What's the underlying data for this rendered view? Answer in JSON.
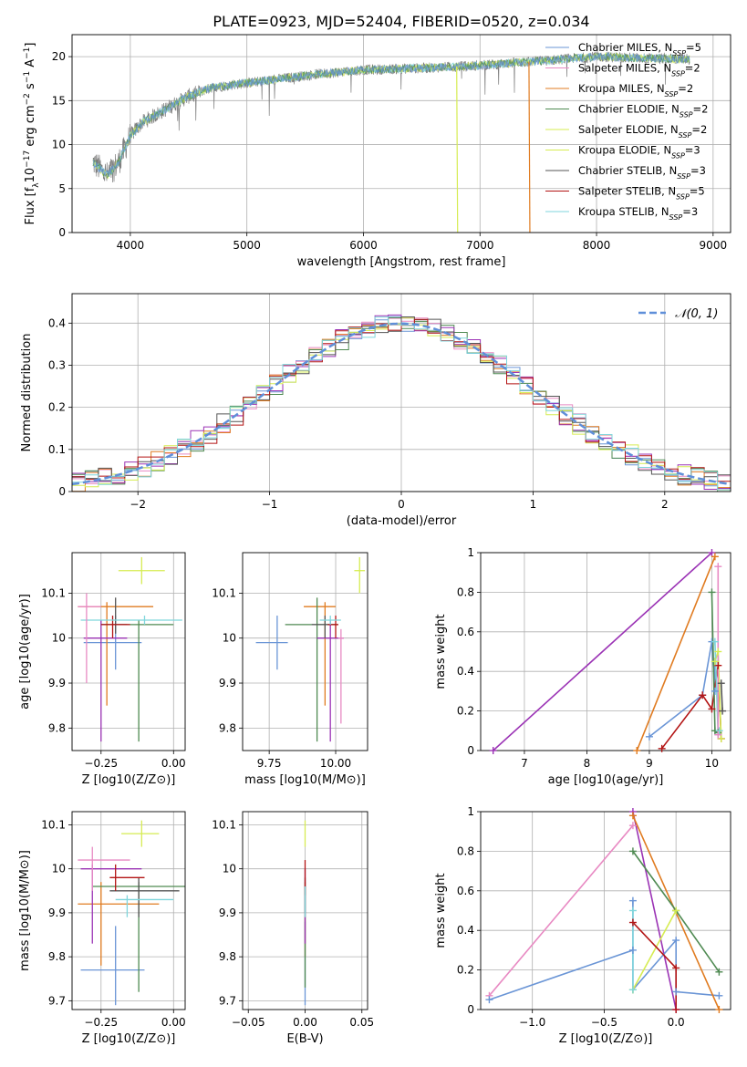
{
  "figure": {
    "title": "PLATE=0923, MJD=52404, FIBERID=0520, z=0.034"
  },
  "colors": {
    "series": [
      "#6a95d6",
      "#e88ac3",
      "#e07b20",
      "#4f8a52",
      "#9b33b5",
      "#d6ec52",
      "#555555",
      "#b31414",
      "#7fd6dc"
    ],
    "observed": "#7f7f7f",
    "grid": "#b0b0b0",
    "gaussian": "#5f8fd9"
  },
  "chart_data": [
    {
      "id": "spectrum",
      "type": "line",
      "xlabel": "wavelength [Angstrom, rest frame]",
      "ylabel_parts": [
        "Flux [f",
        "λ",
        "10",
        "−17",
        " erg cm",
        "−2",
        " s",
        "−1",
        " A",
        "−1",
        "]"
      ],
      "xlim": [
        3500,
        9150
      ],
      "ylim": [
        0,
        22.5
      ],
      "xticks": [
        4000,
        5000,
        6000,
        7000,
        8000,
        9000
      ],
      "yticks": [
        0,
        5,
        10,
        15,
        20
      ],
      "legend": [
        {
          "name": "Chabrier MILES, N",
          "sub": "SSP",
          "suffix": "=5"
        },
        {
          "name": "Salpeter MILES, N",
          "sub": "SSP",
          "suffix": "=2"
        },
        {
          "name": "Kroupa MILES, N",
          "sub": "SSP",
          "suffix": "=2"
        },
        {
          "name": "Chabrier ELODIE, N",
          "sub": "SSP",
          "suffix": "=2"
        },
        {
          "name": "Salpeter ELODIE, N",
          "sub": "SSP",
          "suffix": "=2"
        },
        {
          "name": "Kroupa ELODIE, N",
          "sub": "SSP",
          "suffix": "=3"
        },
        {
          "name": "Chabrier STELIB, N",
          "sub": "SSP",
          "suffix": "=3"
        },
        {
          "name": "Salpeter STELIB, N",
          "sub": "SSP",
          "suffix": "=5"
        },
        {
          "name": "Kroupa STELIB, N",
          "sub": "SSP",
          "suffix": "=3"
        }
      ],
      "legend_colors": [
        0,
        1,
        2,
        3,
        5,
        5,
        6,
        7,
        8
      ],
      "continuum_x": [
        3680,
        3800,
        3900,
        4000,
        4100,
        4300,
        4500,
        4700,
        5000,
        5300,
        5600,
        6000,
        6500,
        7000,
        7500,
        8000,
        8500,
        8800
      ],
      "continuum_y": [
        8,
        6.5,
        8,
        11,
        12.5,
        14,
        15.5,
        16.5,
        17,
        17.5,
        18,
        18.5,
        18.7,
        19,
        19.5,
        20,
        19.8,
        19.7
      ],
      "drop_lines": [
        {
          "x": 6800,
          "color": 5
        },
        {
          "x": 7420,
          "color": 2
        }
      ]
    },
    {
      "id": "residuals",
      "type": "histogram",
      "xlabel": "(data-model)/error",
      "ylabel": "Normed distribution",
      "xlim": [
        -2.5,
        2.5
      ],
      "ylim": [
        0,
        0.47
      ],
      "xticks": [
        -2,
        -1,
        0,
        1,
        2
      ],
      "yticks": [
        0,
        0.1,
        0.2,
        0.3,
        0.4
      ],
      "gaussian_label": "𝒩(0, 1)",
      "bin_width": 0.1
    },
    {
      "id": "age-vs-Z",
      "type": "scatter",
      "xlabel": "Z [log10(Z/Z⊙)]",
      "ylabel": "age  [log10(age/yr)]",
      "xlim": [
        -0.35,
        0.04
      ],
      "ylim": [
        9.75,
        10.19
      ],
      "xticks": [
        -0.25,
        0.0
      ],
      "xticklabels": [
        "−0.25",
        "0.00"
      ],
      "yticks": [
        9.8,
        9.9,
        10.0,
        10.1
      ],
      "points": [
        {
          "x": -0.2,
          "y": 9.99,
          "xerr": [
            0.11,
            0.09
          ],
          "yerr": [
            0.06,
            0.06
          ],
          "c": 0
        },
        {
          "x": -0.23,
          "y": 10.07,
          "xerr": [
            0.1,
            0.16
          ],
          "yerr": [
            0.22,
            0.01
          ],
          "c": 2
        },
        {
          "x": -0.12,
          "y": 10.03,
          "xerr": [
            0.13,
            0.12
          ],
          "yerr": [
            0.26,
            0.01
          ],
          "c": 3
        },
        {
          "x": -0.25,
          "y": 10.0,
          "xerr": [
            0.06,
            0.09
          ],
          "yerr": [
            0.23,
            0.04
          ],
          "c": 4
        },
        {
          "x": -0.11,
          "y": 10.15,
          "xerr": [
            0.08,
            0.08
          ],
          "yerr": [
            0.03,
            0.03
          ],
          "c": 5
        },
        {
          "x": -0.2,
          "y": 10.03,
          "xerr": [
            0.05,
            0.04
          ],
          "yerr": [
            0.02,
            0.06
          ],
          "c": 6
        },
        {
          "x": -0.21,
          "y": 10.03,
          "xerr": [
            0.04,
            0.06
          ],
          "yerr": [
            0.03,
            0.02
          ],
          "c": 7
        },
        {
          "x": -0.1,
          "y": 10.04,
          "xerr": [
            0.22,
            0.13
          ],
          "yerr": [
            0.01,
            0.01
          ],
          "c": 8
        },
        {
          "x": -0.3,
          "y": 10.07,
          "xerr": [
            0.03,
            0.05
          ],
          "yerr": [
            0.17,
            0.03
          ],
          "c": 1
        }
      ]
    },
    {
      "id": "age-vs-mass",
      "type": "scatter",
      "xlabel": "mass [log10(M/M⊙)]",
      "ylabel": "",
      "xlim": [
        9.65,
        10.12
      ],
      "ylim": [
        9.75,
        10.19
      ],
      "xticks": [
        9.75,
        10.0
      ],
      "xticklabels": [
        "9.75",
        "10.00"
      ],
      "yticks": [
        9.8,
        9.9,
        10.0,
        10.1
      ],
      "points": [
        {
          "x": 9.78,
          "y": 9.99,
          "xerr": [
            0.08,
            0.04
          ],
          "yerr": [
            0.06,
            0.06
          ],
          "c": 0
        },
        {
          "x": 9.96,
          "y": 10.07,
          "xerr": [
            0.08,
            0.04
          ],
          "yerr": [
            0.22,
            0.01
          ],
          "c": 2
        },
        {
          "x": 9.93,
          "y": 10.03,
          "xerr": [
            0.12,
            0.08
          ],
          "yerr": [
            0.26,
            0.06
          ],
          "c": 3
        },
        {
          "x": 9.98,
          "y": 10.0,
          "xerr": [
            0.05,
            0.05
          ],
          "yerr": [
            0.23,
            0.04
          ],
          "c": 4
        },
        {
          "x": 10.09,
          "y": 10.15,
          "xerr": [
            0.02,
            0.02
          ],
          "yerr": [
            0.05,
            0.03
          ],
          "c": 5
        },
        {
          "x": 9.96,
          "y": 10.03,
          "xerr": [
            0.05,
            0.04
          ],
          "yerr": [
            0.03,
            0.02
          ],
          "c": 6
        },
        {
          "x": 10.0,
          "y": 10.03,
          "xerr": [
            0.03,
            0.01
          ],
          "yerr": [
            0.03,
            0.02
          ],
          "c": 7
        },
        {
          "x": 9.98,
          "y": 10.04,
          "xerr": [
            0.04,
            0.04
          ],
          "yerr": [
            0.01,
            0.01
          ],
          "c": 8
        },
        {
          "x": 10.02,
          "y": 10.0,
          "xerr": [
            0.01,
            0.01
          ],
          "yerr": [
            0.19,
            0.02
          ],
          "c": 1
        }
      ]
    },
    {
      "id": "weight-vs-age",
      "type": "line",
      "xlabel": "age  [log10(age/yr)]",
      "ylabel": "mass weight",
      "xlim": [
        6.3,
        10.3
      ],
      "ylim": [
        0,
        1.0
      ],
      "xticks": [
        7,
        8,
        9,
        10
      ],
      "yticks": [
        0,
        0.2,
        0.4,
        0.6,
        0.8,
        1.0
      ],
      "series": [
        {
          "c": 4,
          "x": [
            6.5,
            10.0
          ],
          "y": [
            0.0,
            1.0
          ]
        },
        {
          "c": 2,
          "x": [
            8.8,
            10.05
          ],
          "y": [
            0.0,
            0.98
          ]
        },
        {
          "c": 0,
          "x": [
            9.0,
            9.85,
            10.0,
            10.05,
            10.05
          ],
          "y": [
            0.07,
            0.28,
            0.55,
            0.3,
            0.45
          ]
        },
        {
          "c": 7,
          "x": [
            9.2,
            9.85,
            10.0,
            10.1,
            10.15
          ],
          "y": [
            0.01,
            0.28,
            0.21,
            0.43,
            0.06
          ]
        },
        {
          "c": 3,
          "x": [
            10.0,
            10.05,
            10.1
          ],
          "y": [
            0.8,
            0.1,
            0.09
          ]
        },
        {
          "c": 5,
          "x": [
            10.05,
            10.1,
            10.15
          ],
          "y": [
            0.45,
            0.5,
            0.06
          ]
        },
        {
          "c": 8,
          "x": [
            10.05,
            10.1,
            10.12
          ],
          "y": [
            0.55,
            0.08,
            0.1
          ]
        },
        {
          "c": 1,
          "x": [
            10.1,
            10.1
          ],
          "y": [
            0.93,
            0.08
          ]
        },
        {
          "c": 6,
          "x": [
            10.15,
            10.17
          ],
          "y": [
            0.34,
            0.2
          ]
        }
      ]
    },
    {
      "id": "mass-vs-Z",
      "type": "scatter",
      "xlabel": "Z [log10(Z/Z⊙)]",
      "ylabel": "mass [log10(M/M⊙)]",
      "xlim": [
        -0.35,
        0.04
      ],
      "ylim": [
        9.68,
        10.13
      ],
      "xticks": [
        -0.25,
        0.0
      ],
      "xticklabels": [
        "−0.25",
        "0.00"
      ],
      "yticks": [
        9.7,
        9.8,
        9.9,
        10.0,
        10.1
      ],
      "points": [
        {
          "x": -0.2,
          "y": 9.77,
          "xerr": [
            0.12,
            0.1
          ],
          "yerr": [
            0.08,
            0.1
          ],
          "c": 0
        },
        {
          "x": -0.25,
          "y": 9.92,
          "xerr": [
            0.08,
            0.2
          ],
          "yerr": [
            0.14,
            0.05
          ],
          "c": 2
        },
        {
          "x": -0.12,
          "y": 9.96,
          "xerr": [
            0.16,
            0.17
          ],
          "yerr": [
            0.24,
            0.01
          ],
          "c": 3
        },
        {
          "x": -0.28,
          "y": 10.0,
          "xerr": [
            0.04,
            0.17
          ],
          "yerr": [
            0.17,
            0.01
          ],
          "c": 4
        },
        {
          "x": -0.11,
          "y": 10.08,
          "xerr": [
            0.07,
            0.06
          ],
          "yerr": [
            0.03,
            0.03
          ],
          "c": 5
        },
        {
          "x": -0.12,
          "y": 9.95,
          "xerr": [
            0.1,
            0.14
          ],
          "yerr": [
            0.06,
            0.03
          ],
          "c": 6
        },
        {
          "x": -0.2,
          "y": 9.98,
          "xerr": [
            0.02,
            0.1
          ],
          "yerr": [
            0.03,
            0.03
          ],
          "c": 7
        },
        {
          "x": -0.16,
          "y": 9.93,
          "xerr": [
            0.04,
            0.16
          ],
          "yerr": [
            0.04,
            0.01
          ],
          "c": 8
        },
        {
          "x": -0.28,
          "y": 10.02,
          "xerr": [
            0.05,
            0.13
          ],
          "yerr": [
            0.07,
            0.03
          ],
          "c": 1
        }
      ]
    },
    {
      "id": "mass-vs-ebv",
      "type": "scatter",
      "xlabel": "E(B-V)",
      "ylabel": "",
      "xlim": [
        -0.055,
        0.055
      ],
      "ylim": [
        9.68,
        10.13
      ],
      "xticks": [
        -0.05,
        0.0,
        0.05
      ],
      "xticklabels": [
        "−0.05",
        "0.00",
        "0.05"
      ],
      "yticks": [
        9.7,
        9.8,
        9.9,
        10.0,
        10.1
      ],
      "points": [
        {
          "x": 0.0,
          "y": 9.78,
          "xerr": [
            0,
            0
          ],
          "yerr": [
            0.09,
            0.1
          ],
          "c": 0
        },
        {
          "x": 0.0,
          "y": 9.92,
          "xerr": [
            0,
            0
          ],
          "yerr": [
            0.12,
            0.05
          ],
          "c": 2
        },
        {
          "x": 0.0,
          "y": 9.95,
          "xerr": [
            0,
            0
          ],
          "yerr": [
            0.22,
            0.01
          ],
          "c": 3
        },
        {
          "x": 0.0,
          "y": 9.95,
          "xerr": [
            0,
            0
          ],
          "yerr": [
            0.12,
            0.05
          ],
          "c": 4
        },
        {
          "x": 0.0,
          "y": 10.08,
          "xerr": [
            0,
            0
          ],
          "yerr": [
            0.03,
            0.03
          ],
          "c": 5
        },
        {
          "x": 0.0,
          "y": 9.95,
          "xerr": [
            0,
            0
          ],
          "yerr": [
            0.05,
            0.03
          ],
          "c": 6
        },
        {
          "x": 0.0,
          "y": 9.98,
          "xerr": [
            0,
            0
          ],
          "yerr": [
            0.04,
            0.04
          ],
          "c": 7
        },
        {
          "x": 0.0,
          "y": 9.93,
          "xerr": [
            0,
            0
          ],
          "yerr": [
            0.04,
            0.03
          ],
          "c": 8
        }
      ]
    },
    {
      "id": "weight-vs-Z",
      "type": "line",
      "xlabel": "Z [log10(Z/Z⊙)]",
      "ylabel": "mass weight",
      "xlim": [
        -1.36,
        0.38
      ],
      "ylim": [
        0,
        1.0
      ],
      "xticks": [
        -1.0,
        -0.5,
        0.0
      ],
      "xticklabels": [
        "−1.0",
        "−0.5",
        "0.0"
      ],
      "yticks": [
        0,
        0.2,
        0.4,
        0.6,
        0.8,
        1.0
      ],
      "series": [
        {
          "c": 1,
          "x": [
            -1.3,
            -0.3
          ],
          "y": [
            0.07,
            0.93
          ]
        },
        {
          "c": 4,
          "x": [
            -0.3,
            0.0
          ],
          "y": [
            1.0,
            0.0
          ]
        },
        {
          "c": 0,
          "x": [
            -1.3,
            -0.3,
            -0.3,
            -0.3,
            0.0,
            0.0,
            0.3
          ],
          "y": [
            0.05,
            0.3,
            0.55,
            0.1,
            0.35,
            0.09,
            0.07
          ]
        },
        {
          "c": 2,
          "x": [
            -0.3,
            0.3
          ],
          "y": [
            0.98,
            0.0
          ]
        },
        {
          "c": 3,
          "x": [
            -0.3,
            0.0,
            0.3
          ],
          "y": [
            0.8,
            0.5,
            0.19
          ]
        },
        {
          "c": 5,
          "x": [
            -0.3,
            0.0,
            -0.3
          ],
          "y": [
            0.1,
            0.5,
            0.1
          ]
        },
        {
          "c": 7,
          "x": [
            -0.3,
            0.0,
            0.0
          ],
          "y": [
            0.44,
            0.21,
            0.0
          ]
        },
        {
          "c": 8,
          "x": [
            -0.3,
            -0.3
          ],
          "y": [
            0.5,
            0.1
          ]
        }
      ]
    }
  ]
}
